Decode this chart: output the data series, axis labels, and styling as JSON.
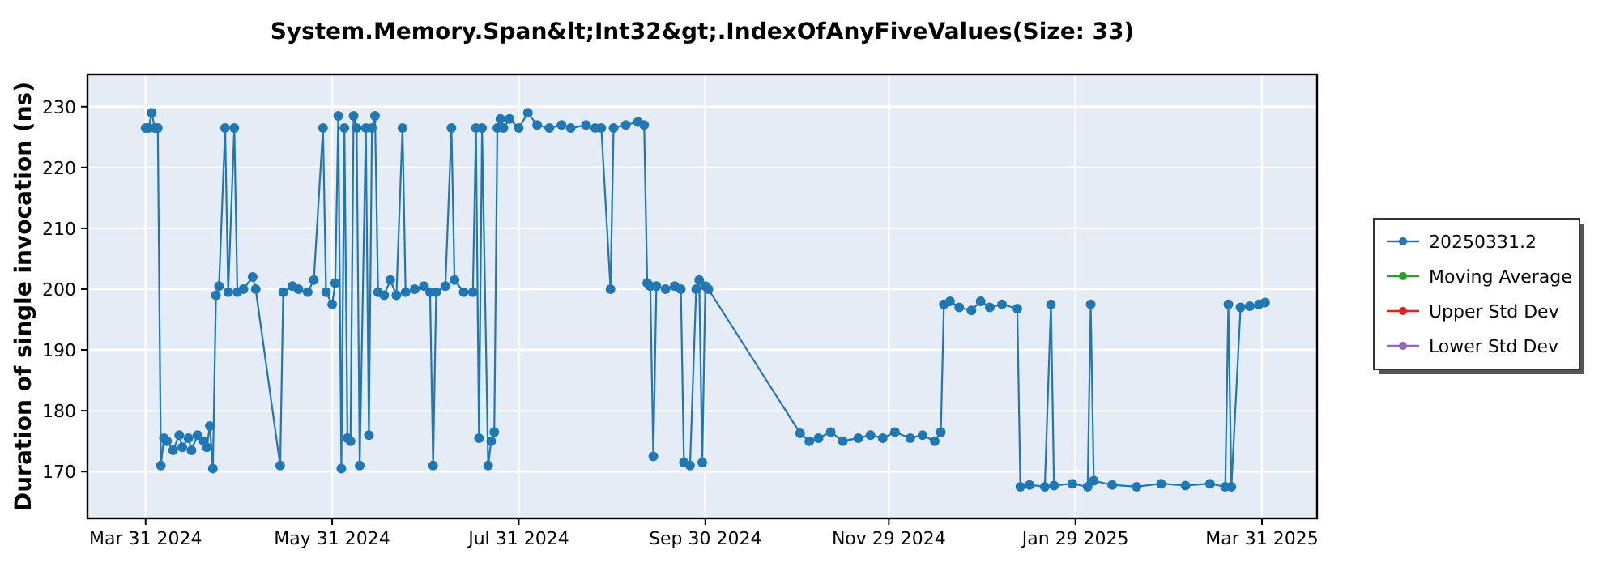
{
  "chart_data": {
    "type": "line",
    "title": "System.Memory.Span&lt;Int32&gt;.IndexOfAnyFiveValues(Size: 33)",
    "ylabel": "Duration of single invocation (ns)",
    "xlim": [
      "2024-03-12",
      "2025-04-18"
    ],
    "ylim": [
      162.3,
      235.3
    ],
    "xticks": [
      {
        "value": "2024-03-31",
        "label": "Mar 31 2024"
      },
      {
        "value": "2024-05-31",
        "label": "May 31 2024"
      },
      {
        "value": "2024-07-31",
        "label": "Jul 31 2024"
      },
      {
        "value": "2024-09-30",
        "label": "Sep 30 2024"
      },
      {
        "value": "2024-11-29",
        "label": "Nov 29 2024"
      },
      {
        "value": "2025-01-29",
        "label": "Jan 29 2025"
      },
      {
        "value": "2025-03-31",
        "label": "Mar 31 2025"
      }
    ],
    "yticks": [
      170,
      180,
      190,
      200,
      210,
      220,
      230
    ],
    "grid": true,
    "legend": "right",
    "marker": "circle",
    "line_style": "solid",
    "series": [
      {
        "name": "20250331.2",
        "color": "#1f77b4",
        "x": [
          "2024-03-31",
          "2024-04-01",
          "2024-04-02",
          "2024-04-03",
          "2024-04-04",
          "2024-04-05",
          "2024-04-06",
          "2024-04-07",
          "2024-04-09",
          "2024-04-11",
          "2024-04-12",
          "2024-04-14",
          "2024-04-15",
          "2024-04-17",
          "2024-04-19",
          "2024-04-20",
          "2024-04-21",
          "2024-04-22",
          "2024-04-23",
          "2024-04-24",
          "2024-04-26",
          "2024-04-27",
          "2024-04-29",
          "2024-04-30",
          "2024-05-02",
          "2024-05-05",
          "2024-05-06",
          "2024-05-14",
          "2024-05-15",
          "2024-05-18",
          "2024-05-20",
          "2024-05-23",
          "2024-05-25",
          "2024-05-28",
          "2024-05-29",
          "2024-05-31",
          "2024-06-01",
          "2024-06-02",
          "2024-06-03",
          "2024-06-04",
          "2024-06-05",
          "2024-06-06",
          "2024-06-07",
          "2024-06-08",
          "2024-06-09",
          "2024-06-11",
          "2024-06-12",
          "2024-06-13",
          "2024-06-14",
          "2024-06-15",
          "2024-06-17",
          "2024-06-19",
          "2024-06-21",
          "2024-06-23",
          "2024-06-24",
          "2024-06-27",
          "2024-06-30",
          "2024-07-02",
          "2024-07-03",
          "2024-07-04",
          "2024-07-07",
          "2024-07-09",
          "2024-07-10",
          "2024-07-13",
          "2024-07-16",
          "2024-07-17",
          "2024-07-18",
          "2024-07-19",
          "2024-07-21",
          "2024-07-22",
          "2024-07-23",
          "2024-07-24",
          "2024-07-25",
          "2024-07-26",
          "2024-07-28",
          "2024-07-31",
          "2024-08-03",
          "2024-08-06",
          "2024-08-10",
          "2024-08-14",
          "2024-08-17",
          "2024-08-22",
          "2024-08-25",
          "2024-08-27",
          "2024-08-30",
          "2024-08-31",
          "2024-09-04",
          "2024-09-08",
          "2024-09-10",
          "2024-09-11",
          "2024-09-12",
          "2024-09-13",
          "2024-09-14",
          "2024-09-17",
          "2024-09-20",
          "2024-09-22",
          "2024-09-23",
          "2024-09-25",
          "2024-09-27",
          "2024-09-28",
          "2024-09-29",
          "2024-09-30",
          "2024-10-01",
          "2024-10-31",
          "2024-11-03",
          "2024-11-06",
          "2024-11-10",
          "2024-11-14",
          "2024-11-19",
          "2024-11-23",
          "2024-11-27",
          "2024-12-01",
          "2024-12-06",
          "2024-12-10",
          "2024-12-14",
          "2024-12-16",
          "2024-12-17",
          "2024-12-19",
          "2024-12-22",
          "2024-12-26",
          "2024-12-29",
          "2025-01-01",
          "2025-01-05",
          "2025-01-10",
          "2025-01-11",
          "2025-01-14",
          "2025-01-19",
          "2025-01-21",
          "2025-01-22",
          "2025-01-28",
          "2025-02-02",
          "2025-02-03",
          "2025-02-04",
          "2025-02-10",
          "2025-02-18",
          "2025-02-26",
          "2025-03-06",
          "2025-03-14",
          "2025-03-19",
          "2025-03-20",
          "2025-03-21",
          "2025-03-24",
          "2025-03-27",
          "2025-03-30",
          "2025-04-01"
        ],
        "values": [
          226.5,
          226.5,
          229,
          226.5,
          226.5,
          171,
          175.5,
          175,
          173.5,
          176,
          174,
          175.5,
          173.5,
          176,
          175,
          174,
          177.5,
          170.5,
          199,
          200.5,
          226.5,
          199.5,
          226.5,
          199.5,
          200,
          202,
          200,
          171,
          199.5,
          200.5,
          200,
          199.5,
          201.5,
          226.5,
          199.5,
          197.5,
          201,
          228.5,
          170.5,
          226.5,
          175.5,
          175,
          228.5,
          226.5,
          171,
          226.5,
          176,
          226.5,
          228.5,
          199.5,
          199,
          201.5,
          199,
          226.5,
          199.5,
          200,
          200.5,
          199.5,
          171,
          199.5,
          200.5,
          226.5,
          201.5,
          199.5,
          199.5,
          226.5,
          175.5,
          226.5,
          171,
          175,
          176.5,
          226.5,
          228,
          226.5,
          228,
          226.5,
          229,
          227,
          226.5,
          227,
          226.5,
          227,
          226.5,
          226.5,
          200,
          226.5,
          227,
          227.5,
          227,
          201,
          200.5,
          172.5,
          200.5,
          200,
          200.5,
          200,
          171.5,
          171,
          200,
          201.5,
          171.5,
          200.5,
          200,
          176.3,
          175,
          175.5,
          176.5,
          175,
          175.5,
          176,
          175.5,
          176.5,
          175.5,
          176,
          175,
          176.5,
          197.5,
          198,
          197,
          196.5,
          198,
          197,
          197.5,
          196.8,
          167.5,
          167.8,
          167.5,
          197.5,
          167.7,
          168,
          167.5,
          197.5,
          168.5,
          167.8,
          167.5,
          168,
          167.7,
          168,
          167.5,
          197.5,
          167.5,
          197,
          197.2,
          197.5,
          197.8
        ]
      },
      {
        "name": "Moving Average",
        "color": "#2ca02c"
      },
      {
        "name": "Upper Std Dev",
        "color": "#d62728"
      },
      {
        "name": "Lower Std Dev",
        "color": "#9467bd"
      }
    ]
  }
}
